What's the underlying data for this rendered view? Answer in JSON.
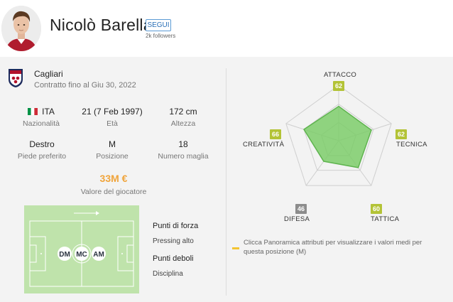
{
  "player": {
    "name": "Nicolò Barella",
    "follow_label": "SEGUI",
    "followers": "2k followers"
  },
  "club": {
    "name": "Cagliari",
    "contract": "Contratto fino al Giu 30, 2022",
    "colors": {
      "primary": "#b3132b",
      "secondary": "#1c2a5c"
    }
  },
  "stats": {
    "nationality": {
      "value": "ITA",
      "label": "Nazionalità",
      "flag_colors": [
        "#009246",
        "#ffffff",
        "#ce2b37"
      ]
    },
    "age": {
      "value": "21 (7 Feb 1997)",
      "label": "Età"
    },
    "height": {
      "value": "172 cm",
      "label": "Altezza"
    },
    "foot": {
      "value": "Destro",
      "label": "Piede preferito"
    },
    "position": {
      "value": "M",
      "label": "Posizione"
    },
    "number": {
      "value": "18",
      "label": "Numero maglia"
    }
  },
  "market_value": {
    "amount": "33M €",
    "label": "Valore del giocatore"
  },
  "pitch": {
    "positions": [
      "DM",
      "MC",
      "AM"
    ],
    "colors": {
      "field": "#bfe3ab",
      "lines": "#ffffff"
    }
  },
  "strengths": {
    "title": "Punti di forza",
    "items": [
      "Pressing alto"
    ]
  },
  "weaknesses": {
    "title": "Punti deboli",
    "items": [
      "Disciplina"
    ]
  },
  "attributes": {
    "axes": [
      {
        "label": "ATTACCO",
        "value": 62,
        "rating": "good"
      },
      {
        "label": "TECNICA",
        "value": 62,
        "rating": "good"
      },
      {
        "label": "TATTICA",
        "value": 60,
        "rating": "good"
      },
      {
        "label": "DIFESA",
        "value": 46,
        "rating": "low"
      },
      {
        "label": "CREATIVITÀ",
        "value": 66,
        "rating": "good"
      }
    ],
    "scale_max": 100,
    "colors": {
      "fill": "#7ccd6a",
      "stroke": "#5fb44f",
      "good": "#b3c336",
      "low": "#8c8c8c",
      "grid": "#cfcfcf"
    }
  },
  "legend": {
    "text": "Clicca Panoramica attributi per visualizzare i valori medi per questa posizione (M)",
    "color": "#f3c431"
  }
}
